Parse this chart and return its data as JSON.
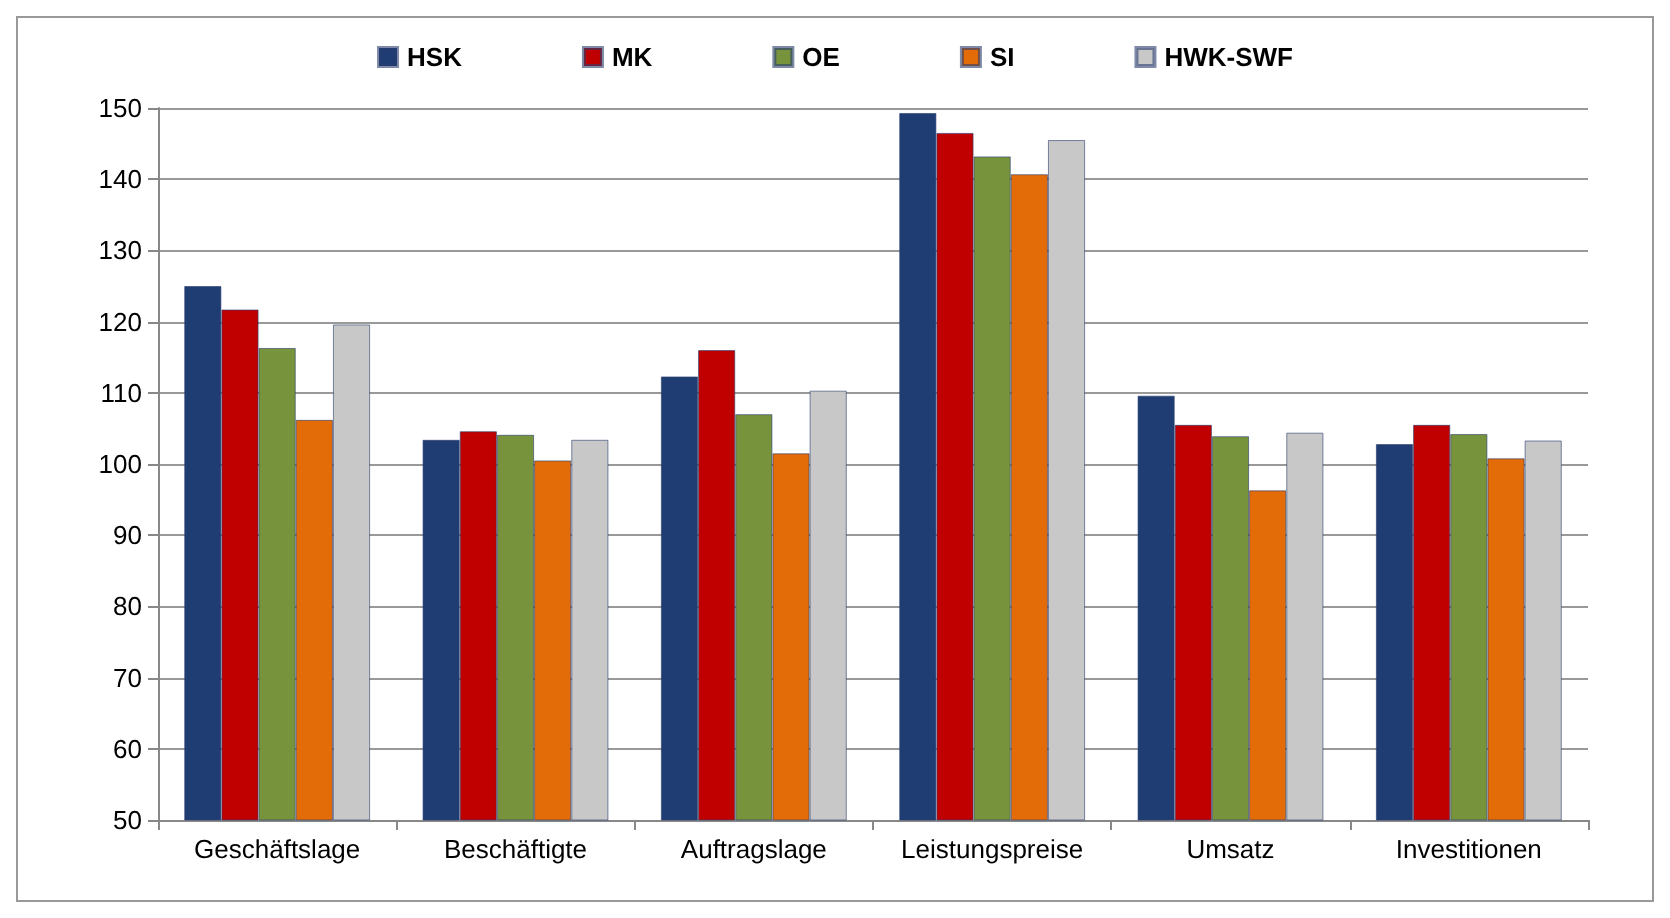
{
  "chart_data": {
    "type": "bar",
    "categories": [
      "Geschäftslage",
      "Beschäftigte",
      "Auftragslage",
      "Leistungspreise",
      "Umsatz",
      "Investitionen"
    ],
    "series": [
      {
        "name": "HSK",
        "color": "#1f3d73",
        "values": [
          125,
          103.4,
          112.3,
          149.3,
          109.6,
          102.8
        ]
      },
      {
        "name": "MK",
        "color": "#c00000",
        "values": [
          121.7,
          104.6,
          116,
          146.5,
          105.5,
          105.5
        ]
      },
      {
        "name": "OE",
        "color": "#77933c",
        "values": [
          116.3,
          104.1,
          107,
          143.2,
          103.9,
          104.2
        ]
      },
      {
        "name": "SI",
        "color": "#e36c09",
        "values": [
          106.2,
          100.5,
          101.5,
          140.7,
          96.3,
          100.8
        ]
      },
      {
        "name": "HWK-SWF",
        "color": "#c8c8c8",
        "values": [
          119.6,
          103.4,
          110.3,
          145.5,
          104.4,
          103.3
        ]
      }
    ],
    "ylim": [
      50,
      150
    ],
    "yticks": [
      50,
      60,
      70,
      80,
      90,
      100,
      110,
      120,
      130,
      140,
      150
    ],
    "grid": "y",
    "legend": "top"
  }
}
